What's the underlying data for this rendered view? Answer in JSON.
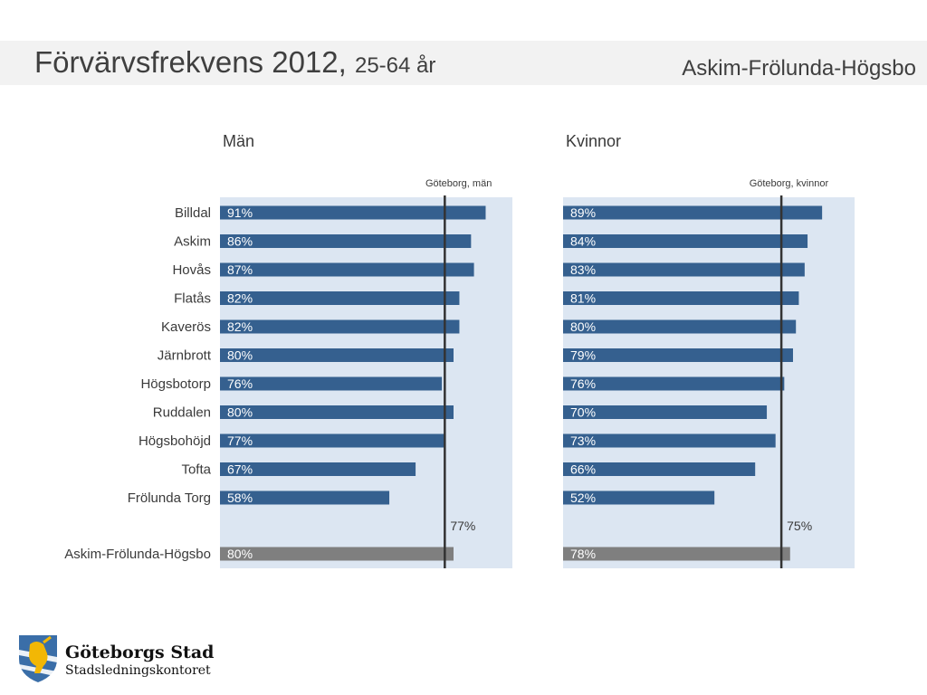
{
  "page": {
    "title_main": "Förvärvsfrekvens 2012,",
    "title_sub": "25-64 år",
    "region": "Askim-Frölunda-Högsbo"
  },
  "logo": {
    "name": "Göteborgs Stad",
    "department": "Stadsledningskontoret"
  },
  "chart_data": [
    {
      "type": "bar",
      "orientation": "horizontal",
      "title": "Män",
      "reference_label": "Göteborg, män",
      "reference_value": 77,
      "reference_value_label": "77%",
      "xlim": [
        0,
        100
      ],
      "categories": [
        "Billdal",
        "Askim",
        "Hovås",
        "Flatås",
        "Kaverös",
        "Järnbrott",
        "Högsbotorp",
        "Ruddalen",
        "Högsbohöjd",
        "Tofta",
        "Frölunda Torg"
      ],
      "values": [
        91,
        86,
        87,
        82,
        82,
        80,
        76,
        80,
        77,
        67,
        58
      ],
      "value_labels": [
        "91%",
        "86%",
        "87%",
        "82%",
        "82%",
        "80%",
        "76%",
        "80%",
        "77%",
        "67%",
        "58%"
      ],
      "total": {
        "category": "Askim-Frölunda-Högsbo",
        "value": 80,
        "value_label": "80%"
      }
    },
    {
      "type": "bar",
      "orientation": "horizontal",
      "title": "Kvinnor",
      "reference_label": "Göteborg, kvinnor",
      "reference_value": 75,
      "reference_value_label": "75%",
      "xlim": [
        0,
        100
      ],
      "categories": [
        "Billdal",
        "Askim",
        "Hovås",
        "Flatås",
        "Kaverös",
        "Järnbrott",
        "Högsbotorp",
        "Ruddalen",
        "Högsbohöjd",
        "Tofta",
        "Frölunda Torg"
      ],
      "values": [
        89,
        84,
        83,
        81,
        80,
        79,
        76,
        70,
        73,
        66,
        52
      ],
      "value_labels": [
        "89%",
        "84%",
        "83%",
        "81%",
        "80%",
        "79%",
        "76%",
        "70%",
        "73%",
        "66%",
        "52%"
      ],
      "total": {
        "category": "Askim-Frölunda-Högsbo",
        "value": 78,
        "value_label": "78%"
      }
    }
  ],
  "colors": {
    "bar": "#35608f",
    "total_bar": "#7f7f7f",
    "panel": "#dce6f2",
    "reference_line": "#333333"
  }
}
